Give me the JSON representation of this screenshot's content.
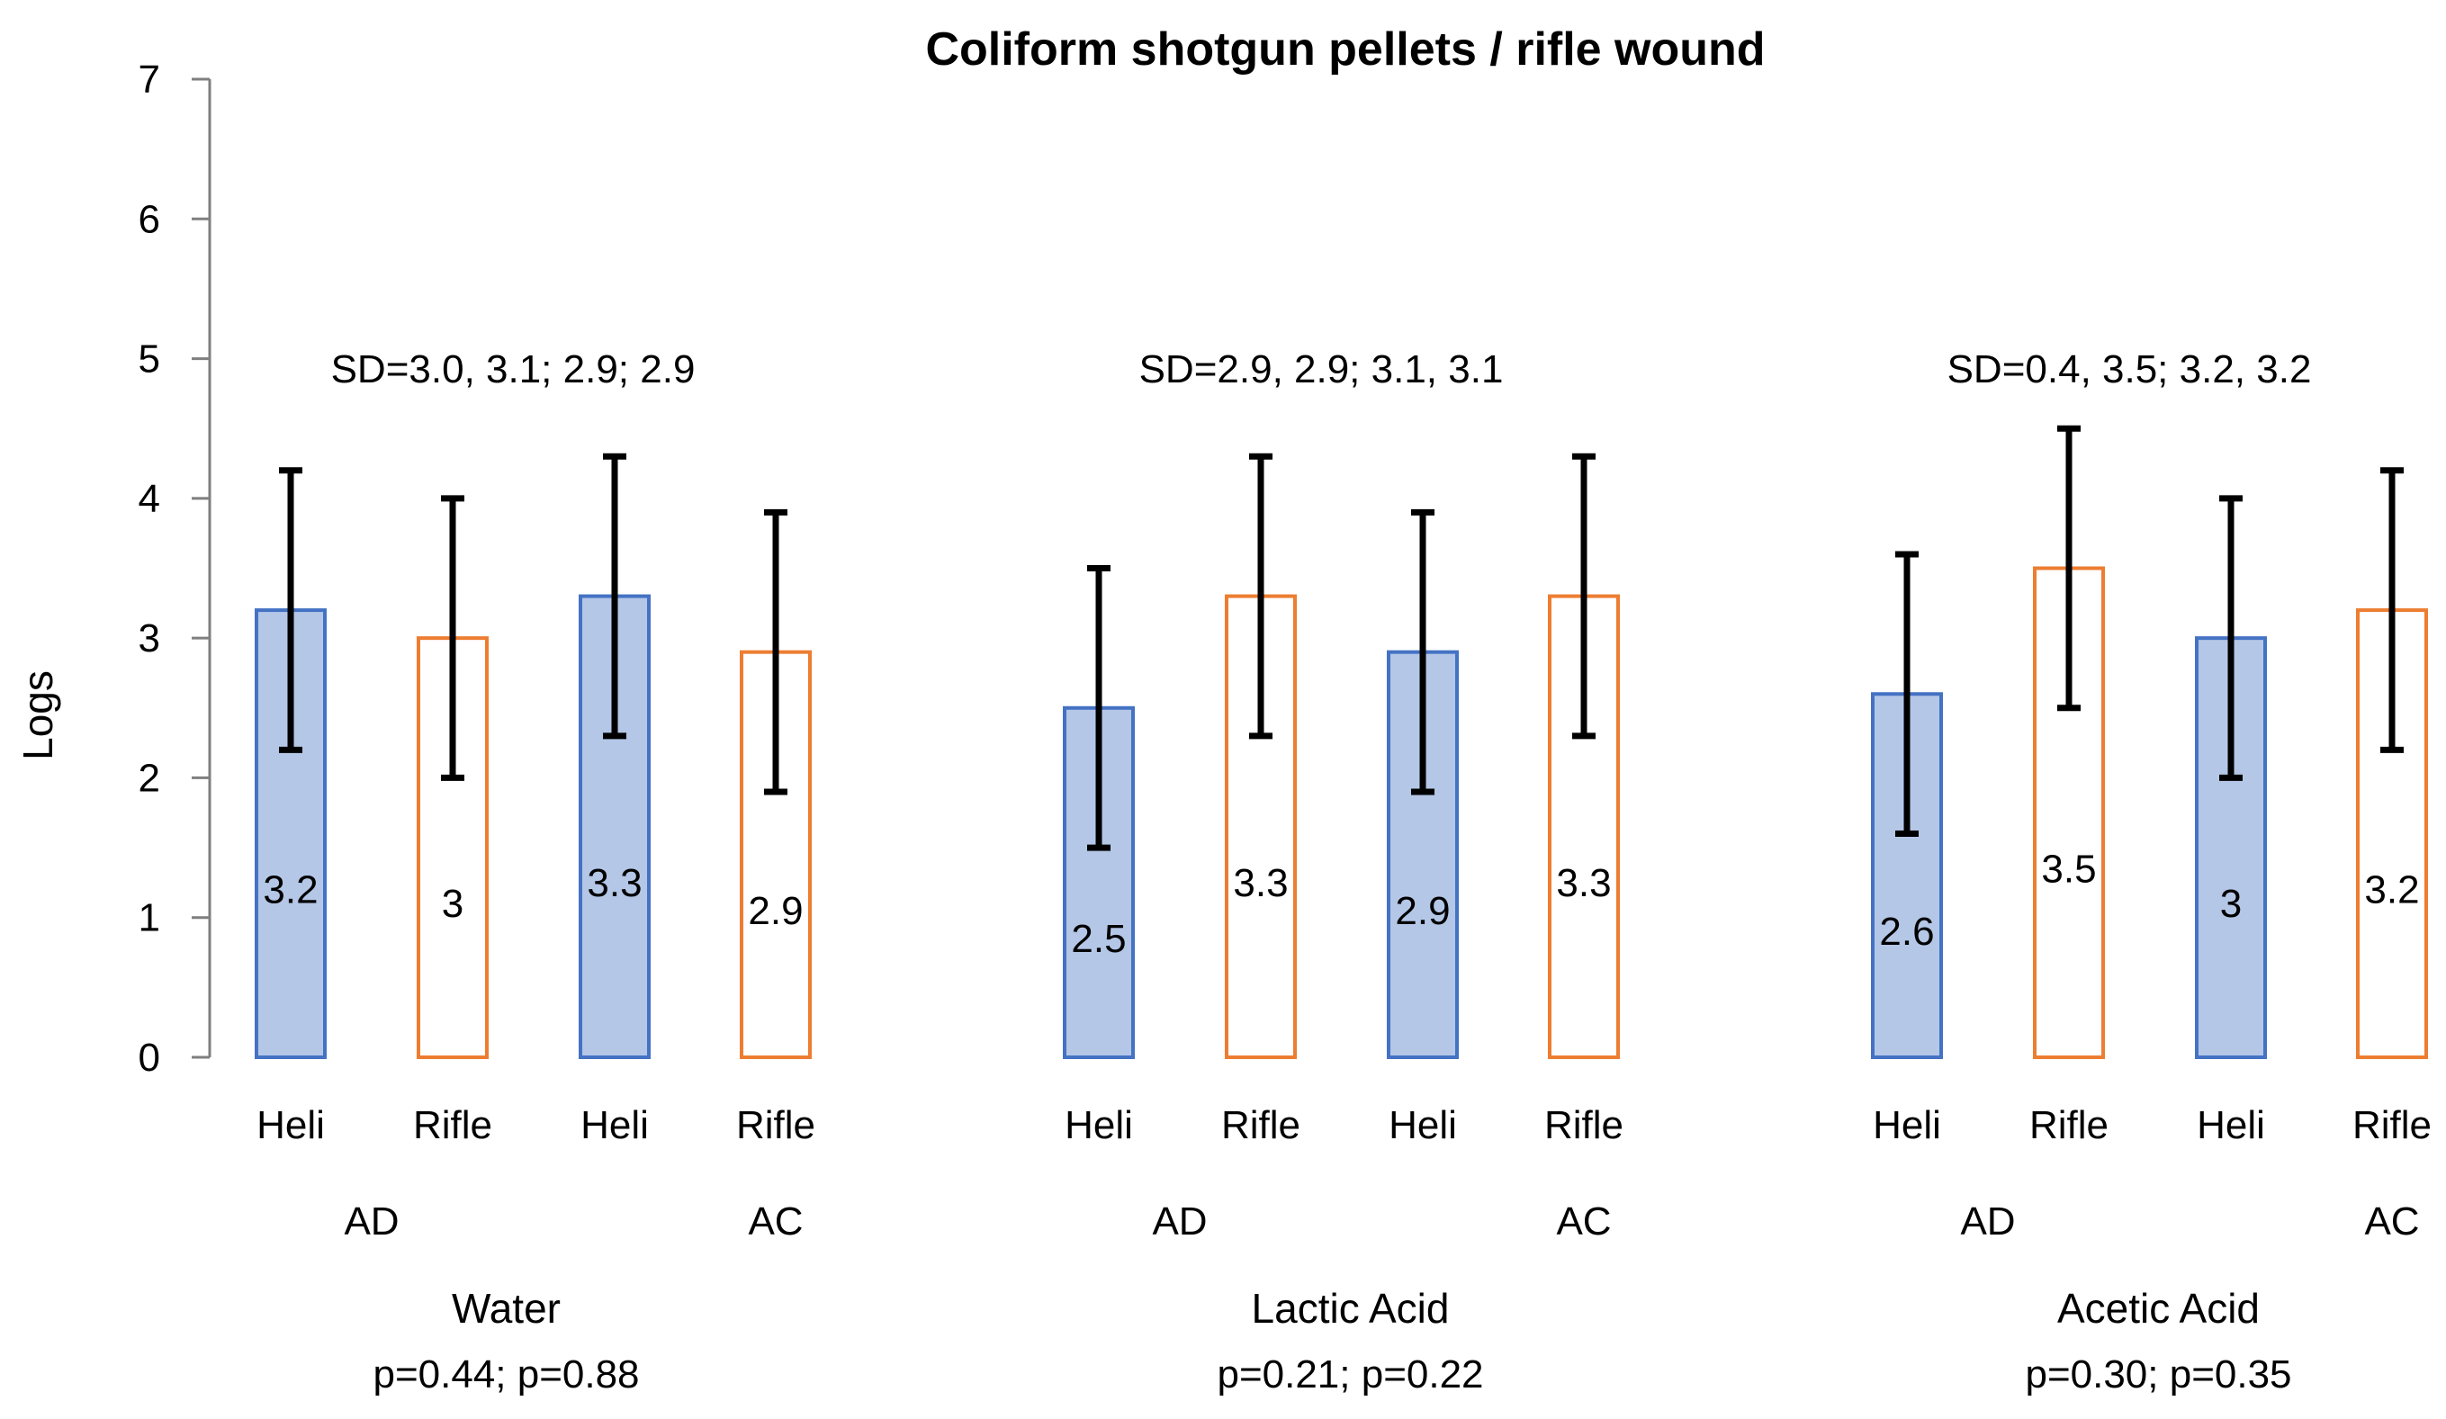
{
  "chart_data": {
    "type": "bar",
    "title": "Coliform shotgun pellets / rifle wound",
    "ylabel": "Logs",
    "ylim": [
      0,
      7
    ],
    "yticks": [
      0,
      1,
      2,
      3,
      4,
      5,
      6,
      7
    ],
    "grid": false,
    "legend": "none",
    "colors": {
      "heli_fill": "#b4c7e7",
      "heli_edge": "#4472c4",
      "rifle_edge": "#ed7d31",
      "axis": "#7f7f7f",
      "error": "#000000"
    },
    "groups": [
      {
        "name": "Water",
        "pvalue": "p=0.44; p=0.88",
        "sd_note": "SD=3.0, 3.1;  2.9; 2.9",
        "subgroups": [
          "AD",
          "AC"
        ],
        "bars": [
          {
            "label": "Heli",
            "series": "Heli",
            "value": 3.2,
            "display": "3.2",
            "err_low": 2.2,
            "err_high": 4.2
          },
          {
            "label": "Rifle",
            "series": "Rifle",
            "value": 3.0,
            "display": "3",
            "err_low": 2.0,
            "err_high": 4.0
          },
          {
            "label": "Heli",
            "series": "Heli",
            "value": 3.3,
            "display": "3.3",
            "err_low": 2.3,
            "err_high": 4.3
          },
          {
            "label": "Rifle",
            "series": "Rifle",
            "value": 2.9,
            "display": "2.9",
            "err_low": 1.9,
            "err_high": 3.9
          }
        ]
      },
      {
        "name": "Lactic Acid",
        "pvalue": "p=0.21; p=0.22",
        "sd_note": "SD=2.9, 2.9;  3.1, 3.1",
        "subgroups": [
          "AD",
          "AC"
        ],
        "bars": [
          {
            "label": "Heli",
            "series": "Heli",
            "value": 2.5,
            "display": "2.5",
            "err_low": 1.5,
            "err_high": 3.5
          },
          {
            "label": "Rifle",
            "series": "Rifle",
            "value": 3.3,
            "display": "3.3",
            "err_low": 2.3,
            "err_high": 4.3
          },
          {
            "label": "Heli",
            "series": "Heli",
            "value": 2.9,
            "display": "2.9",
            "err_low": 1.9,
            "err_high": 3.9
          },
          {
            "label": "Rifle",
            "series": "Rifle",
            "value": 3.3,
            "display": "3.3",
            "err_low": 2.3,
            "err_high": 4.3
          }
        ]
      },
      {
        "name": "Acetic Acid",
        "pvalue": "p=0.30; p=0.35",
        "sd_note": "SD=0.4, 3.5;  3.2, 3.2",
        "subgroups": [
          "AD",
          "AC"
        ],
        "bars": [
          {
            "label": "Heli",
            "series": "Heli",
            "value": 2.6,
            "display": "2.6",
            "err_low": 1.6,
            "err_high": 3.6
          },
          {
            "label": "Rifle",
            "series": "Rifle",
            "value": 3.5,
            "display": "3.5",
            "err_low": 2.5,
            "err_high": 4.5
          },
          {
            "label": "Heli",
            "series": "Heli",
            "value": 3.0,
            "display": "3",
            "err_low": 2.0,
            "err_high": 4.0
          },
          {
            "label": "Rifle",
            "series": "Rifle",
            "value": 3.2,
            "display": "3.2",
            "err_low": 2.2,
            "err_high": 4.2
          }
        ]
      }
    ]
  }
}
